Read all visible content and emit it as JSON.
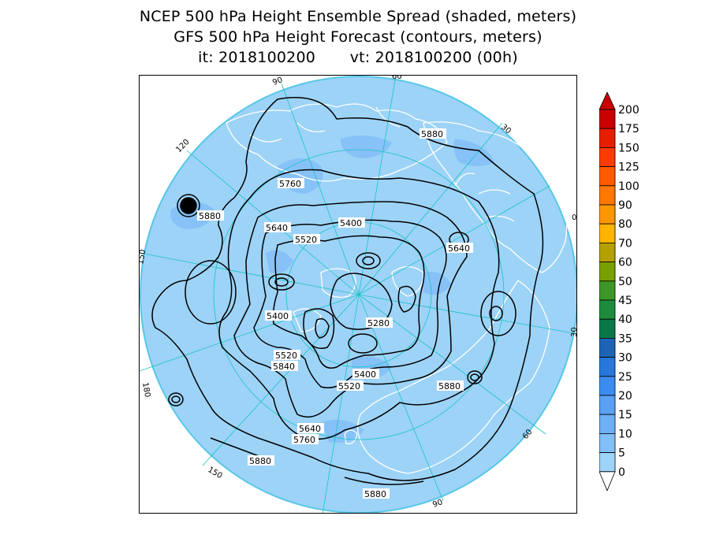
{
  "title": {
    "line1": "NCEP 500 hPa Height Ensemble Spread (shaded, meters)",
    "line2": "GFS 500 hPa Height Forecast (contours, meters)",
    "line3": "it: 2018100200       vt: 2018100200 (00h)"
  },
  "map": {
    "projection": "polar-stereographic-north",
    "ocean_color": "#9dd3f7",
    "outside_disk_color": "#56c7e8",
    "coast_color": "#ffffff",
    "graticule_color": "#17c4c4",
    "longitude_labels": [
      {
        "id": "lon-0",
        "text": "0"
      },
      {
        "id": "lon-30e",
        "text": "30"
      },
      {
        "id": "lon-60e",
        "text": "60"
      },
      {
        "id": "lon-90e",
        "text": "90"
      },
      {
        "id": "lon-120e",
        "text": "120"
      },
      {
        "id": "lon-150e",
        "text": "150"
      },
      {
        "id": "lon-180",
        "text": "180"
      },
      {
        "id": "lon-150w",
        "text": "150"
      },
      {
        "id": "lon-120w",
        "text": "120"
      },
      {
        "id": "lon-90w",
        "text": "90"
      },
      {
        "id": "lon-60w",
        "text": "60"
      },
      {
        "id": "lon-30w",
        "text": "30"
      }
    ],
    "contour_labels": [
      {
        "id": "c1",
        "text": "5880"
      },
      {
        "id": "c2",
        "text": "5760"
      },
      {
        "id": "c3",
        "text": "5880"
      },
      {
        "id": "c4",
        "text": "5640"
      },
      {
        "id": "c5",
        "text": "5520"
      },
      {
        "id": "c6",
        "text": "5400"
      },
      {
        "id": "c7",
        "text": "5640"
      },
      {
        "id": "c8",
        "text": "5400"
      },
      {
        "id": "c9",
        "text": "5280"
      },
      {
        "id": "c10",
        "text": "5520"
      },
      {
        "id": "c11",
        "text": "5840"
      },
      {
        "id": "c12",
        "text": "5400"
      },
      {
        "id": "c13",
        "text": "5520"
      },
      {
        "id": "c14",
        "text": "5880"
      },
      {
        "id": "c15",
        "text": "5640"
      },
      {
        "id": "c16",
        "text": "5760"
      },
      {
        "id": "c17",
        "text": "5880"
      },
      {
        "id": "c18",
        "text": "5880"
      }
    ]
  },
  "colorbar": {
    "levels": [
      "200",
      "175",
      "150",
      "125",
      "100",
      "90",
      "80",
      "70",
      "60",
      "50",
      "45",
      "40",
      "35",
      "30",
      "25",
      "20",
      "15",
      "10",
      "5",
      "0"
    ],
    "colors": [
      "#c80000",
      "#e61e00",
      "#fa3c00",
      "#ff5a00",
      "#ff7800",
      "#ff9600",
      "#ffb400",
      "#b4a000",
      "#78a000",
      "#3c9628",
      "#1e8c3c",
      "#0a7846",
      "#1e64b4",
      "#2878dc",
      "#3c8cf0",
      "#5aa0f5",
      "#6eaff5",
      "#82bef8",
      "#9dd3f7",
      "#b4e1fa"
    ]
  }
}
